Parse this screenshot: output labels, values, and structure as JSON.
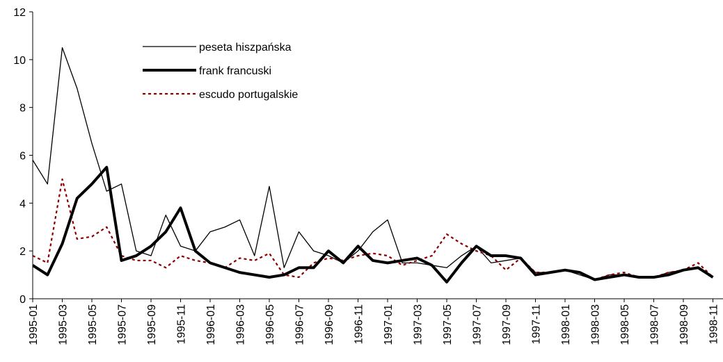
{
  "chart_data": {
    "type": "line",
    "categories": [
      "1995-01",
      null,
      "1995-03",
      null,
      "1995-05",
      null,
      "1995-07",
      null,
      "1995-09",
      null,
      "1995-11",
      null,
      "1996-01",
      null,
      "1996-03",
      null,
      "1996-05",
      null,
      "1996-07",
      null,
      "1996-09",
      null,
      "1996-11",
      null,
      "1997-01",
      null,
      "1997-03",
      null,
      "1997-05",
      null,
      "1997-07",
      null,
      "1997-09",
      null,
      "1997-11",
      null,
      "1998-01",
      null,
      "1998-03",
      null,
      "1998-05",
      null,
      "1998-07",
      null,
      "1998-09",
      null,
      "1998-11"
    ],
    "series": [
      {
        "name": "peseta hiszpańska",
        "color": "#000000",
        "width": 1.3,
        "dash": "none",
        "values": [
          5.8,
          4.8,
          10.5,
          8.8,
          6.5,
          4.5,
          4.8,
          2.0,
          1.8,
          3.5,
          2.2,
          2.0,
          2.8,
          3.0,
          3.3,
          1.8,
          4.7,
          1.3,
          2.8,
          2.0,
          1.8,
          1.5,
          2.0,
          2.8,
          3.3,
          1.5,
          1.5,
          1.4,
          1.3,
          1.8,
          2.2,
          1.5,
          1.6,
          1.7,
          1.1,
          1.1,
          1.2,
          1.0,
          0.8,
          1.0,
          1.0,
          0.9,
          0.9,
          1.1,
          1.2,
          1.3,
          0.9
        ]
      },
      {
        "name": "frank francuski",
        "color": "#000000",
        "width": 4,
        "dash": "none",
        "values": [
          1.4,
          1.0,
          2.3,
          4.2,
          4.8,
          5.5,
          1.6,
          1.8,
          2.2,
          2.8,
          3.8,
          2.0,
          1.5,
          1.3,
          1.1,
          1.0,
          0.9,
          1.0,
          1.3,
          1.3,
          2.0,
          1.5,
          2.2,
          1.6,
          1.5,
          1.6,
          1.7,
          1.4,
          0.7,
          1.5,
          2.2,
          1.8,
          1.8,
          1.7,
          1.0,
          1.1,
          1.2,
          1.1,
          0.8,
          0.9,
          1.0,
          0.9,
          0.9,
          1.0,
          1.2,
          1.3,
          0.9
        ]
      },
      {
        "name": "escudo portugalskie",
        "color": "#8b0000",
        "width": 2.2,
        "dash": "4 4",
        "values": [
          1.8,
          1.5,
          5.0,
          2.5,
          2.6,
          3.0,
          1.8,
          1.6,
          1.6,
          1.3,
          1.8,
          1.6,
          1.5,
          1.3,
          1.7,
          1.6,
          1.9,
          1.0,
          0.9,
          1.5,
          1.7,
          1.6,
          1.8,
          1.9,
          1.8,
          1.4,
          1.6,
          1.8,
          2.7,
          2.3,
          2.0,
          1.8,
          1.2,
          1.7,
          1.1,
          1.1,
          1.2,
          1.1,
          0.8,
          1.0,
          1.1,
          0.9,
          0.9,
          1.1,
          1.2,
          1.5,
          0.9
        ]
      }
    ],
    "ylim": [
      0,
      12
    ],
    "yticks": [
      0,
      2,
      4,
      6,
      8,
      10,
      12
    ]
  }
}
